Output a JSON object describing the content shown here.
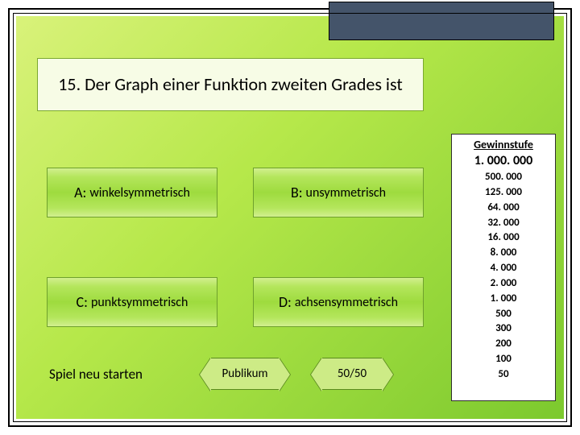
{
  "colors": {
    "frame": "#000000",
    "bg_gradient_from": "#d9f27a",
    "bg_gradient_to": "#7cc92e",
    "title_placeholder": "#44546a",
    "question_bg": "#f7fce6",
    "answer_bg": "#b4e65c",
    "hex_bg": "#cdeb86",
    "ladder_bg": "#ffffff"
  },
  "question": {
    "text": "15. Der Graph einer Funktion zweiten Grades ist",
    "fontsize": 22
  },
  "answers": {
    "A": {
      "tag": "A:",
      "text": "winkelsymmetrisch"
    },
    "B": {
      "tag": "B:",
      "text": "unsymmetrisch"
    },
    "C": {
      "tag": "C:",
      "text": "punktsymmetrisch"
    },
    "D": {
      "tag": "D:",
      "text": "achsensymmetrisch"
    }
  },
  "restart_label": "Spiel neu starten",
  "jokers": {
    "publikum": "Publikum",
    "fifty": "50/50"
  },
  "ladder": {
    "title": "Gewinnstufe",
    "current": "1. 000. 000",
    "levels": [
      "500. 000",
      "125. 000",
      "64. 000",
      "32. 000",
      "16. 000",
      "8. 000",
      "4. 000",
      "2. 000",
      "1. 000",
      "500",
      "300",
      "200",
      "100",
      "50"
    ]
  }
}
